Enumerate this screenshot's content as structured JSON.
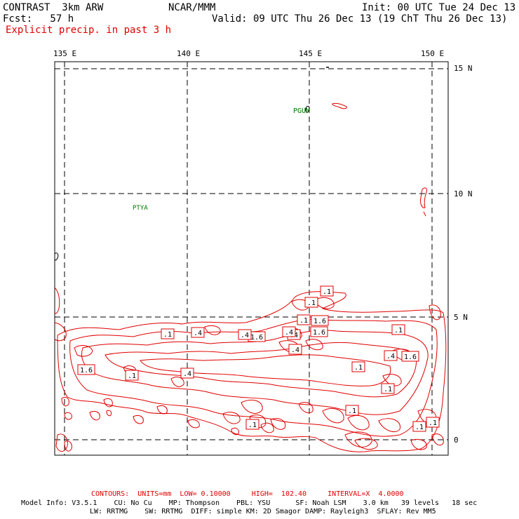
{
  "header": {
    "title": "CONTRAST  3km ARW",
    "org": "NCAR/MMM",
    "init": "Init: 00 UTC Tue 24 Dec 13",
    "fcst": "Fcst:   57 h",
    "valid": "Valid: 09 UTC Thu 26 Dec 13 (19 ChT Thu 26 Dec 13)",
    "field": "Explicit precip. in past 3 h"
  },
  "axes": {
    "lon_labels": [
      "135 E",
      "140 E",
      "145 E",
      "150 E"
    ],
    "lat_labels": [
      "15 N",
      "10 N",
      "5 N",
      "0"
    ]
  },
  "stations": [
    {
      "name": "PGUM"
    },
    {
      "name": "PTYA"
    }
  ],
  "contour_labels": [
    ".1",
    ".1",
    "1.6",
    ".4",
    ".1",
    "1.6",
    ".4",
    "1.6",
    ".1",
    ".4",
    ".1",
    "1.6",
    ".1",
    ".4",
    ".1",
    ".1",
    ".4",
    ".4",
    ".1",
    ".1",
    "1.6",
    ".1",
    ".4",
    ".1"
  ],
  "footer": {
    "contours": "CONTOURS:  UNITS=mm  LOW= 0.10000     HIGH=  102.40     INTERVAL=X  4.0000",
    "model_line1": "Model Info: V3.5.1    CU: No Cu    MP: Thompson    PBL: YSU      SF: Noah LSM    3.0 km   39 levels   18 sec",
    "model_line2": "LW: RRTMG    SW: RRTMG  DIFF: simple KM: 2D Smagor DAMP: Rayleigh3  SFLAY: Rev MM5"
  },
  "colors": {
    "contour": "#e00000",
    "station": "#007a00",
    "grid": "#000000"
  }
}
